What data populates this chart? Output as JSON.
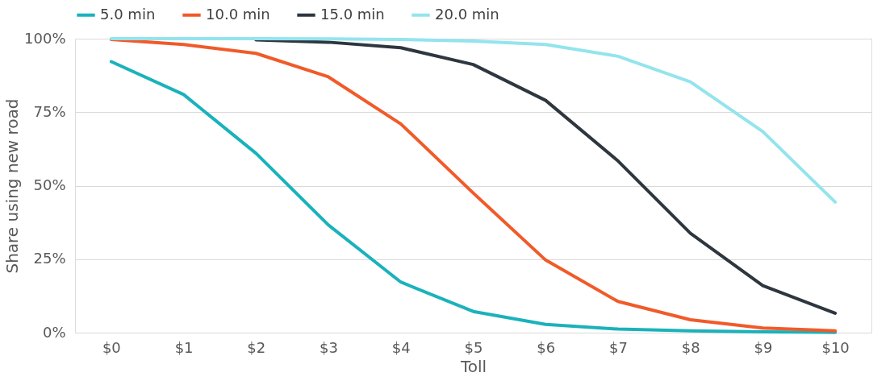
{
  "chart_data": {
    "type": "line",
    "xlabel": "Toll",
    "ylabel": "Share using new road",
    "categories": [
      "$0",
      "$1",
      "$2",
      "$3",
      "$4",
      "$5",
      "$6",
      "$7",
      "$8",
      "$9",
      "$10"
    ],
    "series": [
      {
        "name": "5.0 min",
        "color": "#1ab2bb",
        "values": [
          92.2,
          81,
          61,
          36.6,
          17.2,
          7.2,
          2.8,
          1.2,
          0.6,
          0.3,
          0.1
        ]
      },
      {
        "name": "10.0 min",
        "color": "#f15a29",
        "values": [
          99.7,
          98,
          95,
          87,
          71,
          47.5,
          24.7,
          10.6,
          4.4,
          1.6,
          0.6
        ]
      },
      {
        "name": "15.0 min",
        "color": "#2e363f",
        "values": [
          null,
          null,
          99.6,
          98.8,
          96.9,
          91.2,
          79,
          58.4,
          33.8,
          16,
          6.6
        ]
      },
      {
        "name": "20.0 min",
        "color": "#93e4ed",
        "values": [
          100,
          100,
          100,
          99.9,
          99.7,
          99.2,
          98,
          94,
          85.3,
          68.4,
          44.4
        ]
      }
    ],
    "ylim": [
      0,
      100
    ],
    "yticks": [
      {
        "value": 0,
        "label": "0%"
      },
      {
        "value": 25,
        "label": "25%"
      },
      {
        "value": 50,
        "label": "50%"
      },
      {
        "value": 75,
        "label": "75%"
      },
      {
        "value": 100,
        "label": "100%"
      }
    ],
    "grid": "y",
    "legend": "top",
    "marker": "none",
    "line_style": "solid"
  }
}
